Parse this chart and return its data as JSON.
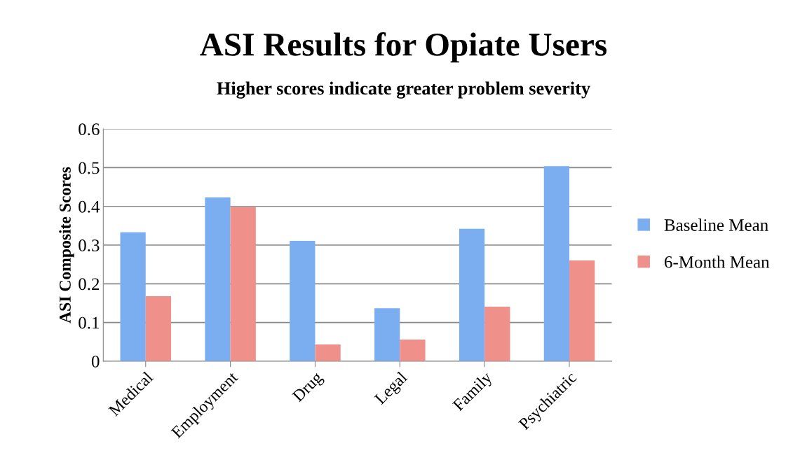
{
  "chart_data": {
    "type": "bar",
    "title": "ASI Results for Opiate Users",
    "subtitle": "Higher scores indicate greater problem severity",
    "ylabel": "ASI Composite Scores",
    "categories": [
      "Medical",
      "Employment",
      "Drug",
      "Legal",
      "Family",
      "Psychiatric"
    ],
    "series": [
      {
        "name": "Baseline Mean",
        "color": "#7aaef0",
        "values": [
          0.333,
          0.423,
          0.311,
          0.137,
          0.342,
          0.504
        ]
      },
      {
        "name": "6-Month Mean",
        "color": "#f0908a",
        "values": [
          0.168,
          0.398,
          0.043,
          0.056,
          0.141,
          0.26
        ]
      }
    ],
    "ylim": [
      0,
      0.6
    ],
    "yticks": [
      0,
      {
        "value": 0.1,
        "label": "0.1"
      },
      {
        "value": 0.2,
        "label": "0.2"
      },
      {
        "value": 0.3,
        "label": "0.3"
      },
      {
        "value": 0.4,
        "label": "0.4"
      },
      {
        "value": 0.5,
        "label": "0.5"
      },
      {
        "value": 0.6,
        "label": "0.6"
      }
    ],
    "grid": "y",
    "legend": "right"
  }
}
